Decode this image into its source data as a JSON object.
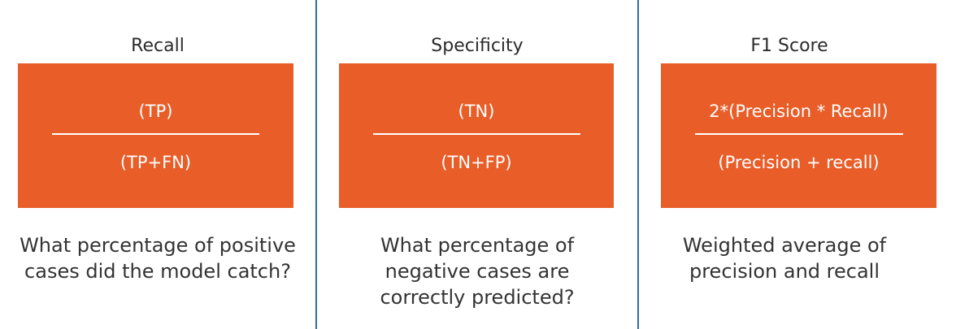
{
  "colors": {
    "box_fill": "#e85d28",
    "divider": "#2f6fa0",
    "text": "#333333"
  },
  "panels": [
    {
      "title": "Recall",
      "numerator": "(TP)",
      "denominator": "(TP+FN)",
      "caption": "What percentage of positive cases did the model catch?"
    },
    {
      "title": "Specificity",
      "numerator": "(TN)",
      "denominator": "(TN+FP)",
      "caption": "What percentage of negative cases are correctly predicted?"
    },
    {
      "title": "F1 Score",
      "numerator": "2*(Precision * Recall)",
      "denominator": "(Precision + recall)",
      "caption": "Weighted average of precision and recall"
    }
  ]
}
